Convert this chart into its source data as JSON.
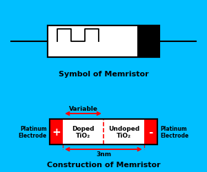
{
  "background_color": "#00BFFF",
  "top_panel_bg": "#FFFFFF",
  "bottom_panel_bg": "#FFFFFF",
  "title_top": "Symbol of Memristor",
  "title_bottom": "Construction of Memristor",
  "red_color": "#FF0000",
  "black_color": "#000000",
  "electrode_color": "#FF0000",
  "doped_label": "Doped\nTiO₂",
  "undoped_label": "Undoped\nTiO₂",
  "left_electrode_label": "Platinum\nElectrode",
  "right_electrode_label": "Platinum\nElectrode",
  "variable_label": "Variable",
  "nm_label": "3nm",
  "plus_label": "+",
  "minus_label": "-"
}
